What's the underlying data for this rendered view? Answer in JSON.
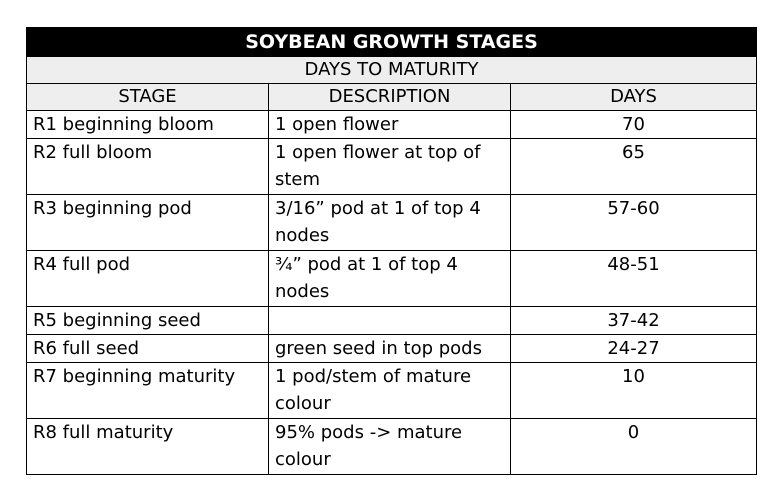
{
  "table": {
    "title": "SOYBEAN GROWTH STAGES",
    "subtitle": "DAYS TO MATURITY",
    "headers": [
      "STAGE",
      "DESCRIPTION",
      "DAYS"
    ],
    "rows": [
      {
        "stage": "R1 beginning bloom",
        "description": "1 open flower",
        "days": "70"
      },
      {
        "stage": "R2 full bloom",
        "description": "1 open flower at top of stem",
        "days": "65"
      },
      {
        "stage": "R3 beginning pod",
        "description": "3/16” pod at 1 of top 4 nodes",
        "days": "57-60"
      },
      {
        "stage": "R4 full pod",
        "description": "¾” pod at 1 of top 4 nodes",
        "days": "48-51"
      },
      {
        "stage": "R5 beginning seed",
        "description": "",
        "days": "37-42"
      },
      {
        "stage": "R6 full seed",
        "description": "green seed in top pods",
        "days": "24-27"
      },
      {
        "stage": "R7 beginning maturity",
        "description": "1 pod/stem of mature colour",
        "days": "10"
      },
      {
        "stage": "R8 full maturity",
        "description": "95% pods -> mature colour",
        "days": "0"
      }
    ]
  }
}
